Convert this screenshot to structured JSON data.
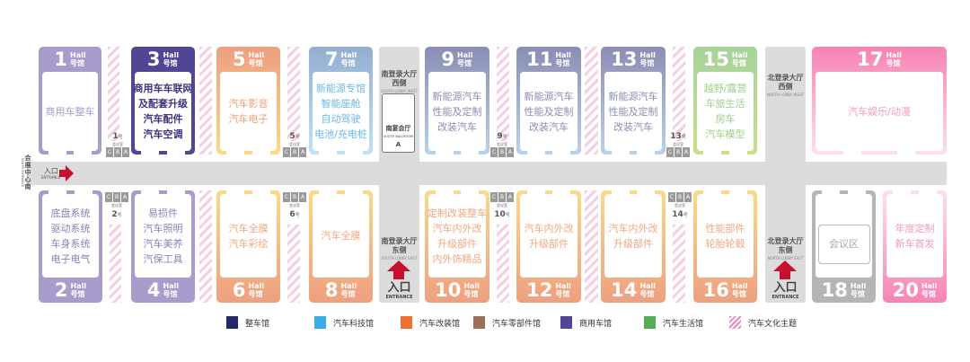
{
  "halls": [
    {
      "id": "1",
      "num": "1",
      "hall": "Hall",
      "hao": "号馆",
      "lines": [
        "商用车整车"
      ],
      "fill": "#a99bcb",
      "text": "#a99bcb"
    },
    {
      "id": "3",
      "num": "3",
      "hall": "Hall",
      "hao": "号馆",
      "lines": [
        "商用车车联网",
        "及配套升级",
        "汽车配件",
        "汽车空调"
      ],
      "fill": "#524593",
      "text": "#3f3480"
    },
    {
      "id": "5",
      "num": "5",
      "hall": "Hall",
      "hao": "号馆",
      "lines": [
        "汽车影音",
        "汽车电子"
      ],
      "fill": "#ee9f80",
      "fill2": "#fbd989",
      "text": "#f0a070"
    },
    {
      "id": "7",
      "num": "7",
      "hall": "Hall",
      "hao": "号馆",
      "lines": [
        "新能源专馆",
        "智能座舱",
        "自动驾驶",
        "电池/充电桩"
      ],
      "fill": "#94aed0",
      "fill2": "#bfe3f5",
      "text": "#6ab8e8"
    },
    {
      "id": "9",
      "num": "9",
      "hall": "Hall",
      "hao": "号馆",
      "lines": [
        "新能源汽车",
        "性能及定制",
        "改装汽车"
      ],
      "fill": "#8b8db4",
      "fill2": "#b8d3ec",
      "text": "#8b8db4"
    },
    {
      "id": "11",
      "num": "11",
      "hall": "Hall",
      "hao": "号馆",
      "lines": [
        "新能源汽车",
        "性能及定制",
        "改装汽车"
      ],
      "fill": "#8b8db4",
      "fill2": "#b8d3ec",
      "text": "#8b8db4"
    },
    {
      "id": "13",
      "num": "13",
      "hall": "Hall",
      "hao": "号馆",
      "lines": [
        "新能源汽车",
        "性能及定制",
        "改装汽车"
      ],
      "fill": "#8b8db4",
      "fill2": "#b8d3ec",
      "text": "#8b8db4"
    },
    {
      "id": "15",
      "num": "15",
      "hall": "Hall",
      "hao": "号馆",
      "lines": [
        "越野/露营",
        "车旅生活",
        "房车",
        "汽车模型"
      ],
      "fill": "#a6d49a",
      "fill2": "#c8e08b",
      "text": "#9cd088"
    },
    {
      "id": "17",
      "num": "17",
      "hall": "Hall",
      "hao": "号馆",
      "lines": [
        "汽车娱乐/动漫"
      ],
      "fill": "#f684b4",
      "fill2": "#fde0ec",
      "text": "#f598c0"
    },
    {
      "id": "2",
      "num": "2",
      "hall": "Hall",
      "hao": "号馆",
      "lines": [
        "底盘系统",
        "驱动系统",
        "车身系统",
        "电子电气"
      ],
      "fill": "#a99bcb",
      "text": "#8c80b8"
    },
    {
      "id": "4",
      "num": "4",
      "hall": "Hall",
      "hao": "号馆",
      "lines": [
        "易损件",
        "汽车照明",
        "汽车美养",
        "汽保工具"
      ],
      "fill": "#a99bcb",
      "text": "#8c80b8"
    },
    {
      "id": "6",
      "num": "6",
      "hall": "Hall",
      "hao": "号馆",
      "lines": [
        "汽车全膜",
        "汽车彩绘"
      ],
      "fill": "#fbd989",
      "fill2": "#eea080",
      "text": "#f0a880"
    },
    {
      "id": "8",
      "num": "8",
      "hall": "Hall",
      "hao": "号馆",
      "lines": [
        "汽车全膜"
      ],
      "fill": "#fbd989",
      "fill2": "#eea080",
      "text": "#f0a880"
    },
    {
      "id": "10",
      "num": "10",
      "hall": "Hall",
      "hao": "号馆",
      "lines": [
        "定制改装整车",
        "汽车内外改",
        "升级部件",
        "内外饰精品"
      ],
      "fill": "#fbd989",
      "fill2": "#eea080",
      "text": "#f0a880"
    },
    {
      "id": "12",
      "num": "12",
      "hall": "Hall",
      "hao": "号馆",
      "lines": [
        "汽车内外改",
        "升级部件"
      ],
      "fill": "#fbd989",
      "fill2": "#eea080",
      "text": "#f0a880"
    },
    {
      "id": "14",
      "num": "14",
      "hall": "Hall",
      "hao": "号馆",
      "lines": [
        "汽车内外改",
        "升级部件"
      ],
      "fill": "#fbd989",
      "fill2": "#eea080",
      "text": "#f0a880"
    },
    {
      "id": "16",
      "num": "16",
      "hall": "Hall",
      "hao": "号馆",
      "lines": [
        "性能部件",
        "轮胎轮毂"
      ],
      "fill": "#fbd989",
      "fill2": "#eea080",
      "text": "#f0a880"
    },
    {
      "id": "18",
      "num": "18",
      "hall": "Hall",
      "hao": "号馆",
      "lines": [
        "会议区"
      ],
      "fill": "#b5b5b5",
      "text": "#aaaaaa",
      "boxed": true
    },
    {
      "id": "20",
      "num": "20",
      "hall": "Hall",
      "hao": "号馆",
      "lines": [
        "年度定制",
        "新车首发"
      ],
      "fill": "#fde0ec",
      "fill2": "#f684b4",
      "text": "#f598c0"
    }
  ],
  "meeting_rooms": [
    {
      "id": "1",
      "num": "1",
      "suffix": "号",
      "label": "会议室",
      "rooms": [
        "C",
        "B",
        "A"
      ]
    },
    {
      "id": "5",
      "num": "5",
      "suffix": "号",
      "label": "会议室",
      "rooms": [
        "C",
        "B",
        "A"
      ]
    },
    {
      "id": "9",
      "num": "9",
      "suffix": "号",
      "label": "会议室",
      "rooms": [
        "C",
        "B",
        "A"
      ]
    },
    {
      "id": "13",
      "num": "13",
      "suffix": "号",
      "label": "会议室",
      "rooms": [
        "C",
        "B",
        "A"
      ]
    },
    {
      "id": "2",
      "num": "2",
      "suffix": "号",
      "label": "会议室",
      "rooms": [
        "C",
        "B",
        "A"
      ]
    },
    {
      "id": "6",
      "num": "6",
      "suffix": "号",
      "label": "会议室",
      "rooms": [
        "C",
        "B",
        "A"
      ]
    },
    {
      "id": "10",
      "num": "10",
      "suffix": "号",
      "label": "会议室",
      "rooms": [
        "C",
        "B",
        "A"
      ]
    },
    {
      "id": "14",
      "num": "14",
      "suffix": "号",
      "label": "会议室",
      "rooms": [
        "C",
        "B",
        "A"
      ]
    }
  ],
  "lobbies": {
    "south_west": {
      "zh1": "南登录大厅",
      "zh2": "西侧",
      "en": "SOUTH LOBBY WEST"
    },
    "south_east": {
      "zh1": "南登录大厅",
      "zh2": "东侧",
      "en": "SOUTH LOBBY EAST"
    },
    "north_west": {
      "zh1": "北登录大厅",
      "zh2": "西侧",
      "en": "NORTH LOBBY WEST"
    },
    "north_east": {
      "zh1": "北登录大厅",
      "zh2": "东侧",
      "en": "NORTH LOBBY EAST"
    }
  },
  "ballroom": {
    "zh": "南宴会厅",
    "en": "SOUTH BALLROOM",
    "letter": "A"
  },
  "entrances": {
    "west": {
      "zh": "入口",
      "en": "ENTRANCE",
      "side_zh": "会展中心南",
      "side_en": "SOUTH ENTRANCE"
    },
    "south_east": {
      "zh": "入口",
      "en": "ENTRANCE"
    },
    "north_east": {
      "zh": "入口",
      "en": "ENTRANCE"
    }
  },
  "legend": [
    {
      "label": "整车馆",
      "color": "#232a6b"
    },
    {
      "label": "汽车科技馆",
      "color": "#3aade6"
    },
    {
      "label": "汽车改装馆",
      "color": "#ee7034"
    },
    {
      "label": "汽车零部件馆",
      "color": "#9a7056"
    },
    {
      "label": "商用车馆",
      "color": "#524593"
    },
    {
      "label": "汽车生活馆",
      "color": "#57ad55"
    },
    {
      "label": "汽车文化主题",
      "color": "#e889c0",
      "pattern": "stripes"
    }
  ]
}
